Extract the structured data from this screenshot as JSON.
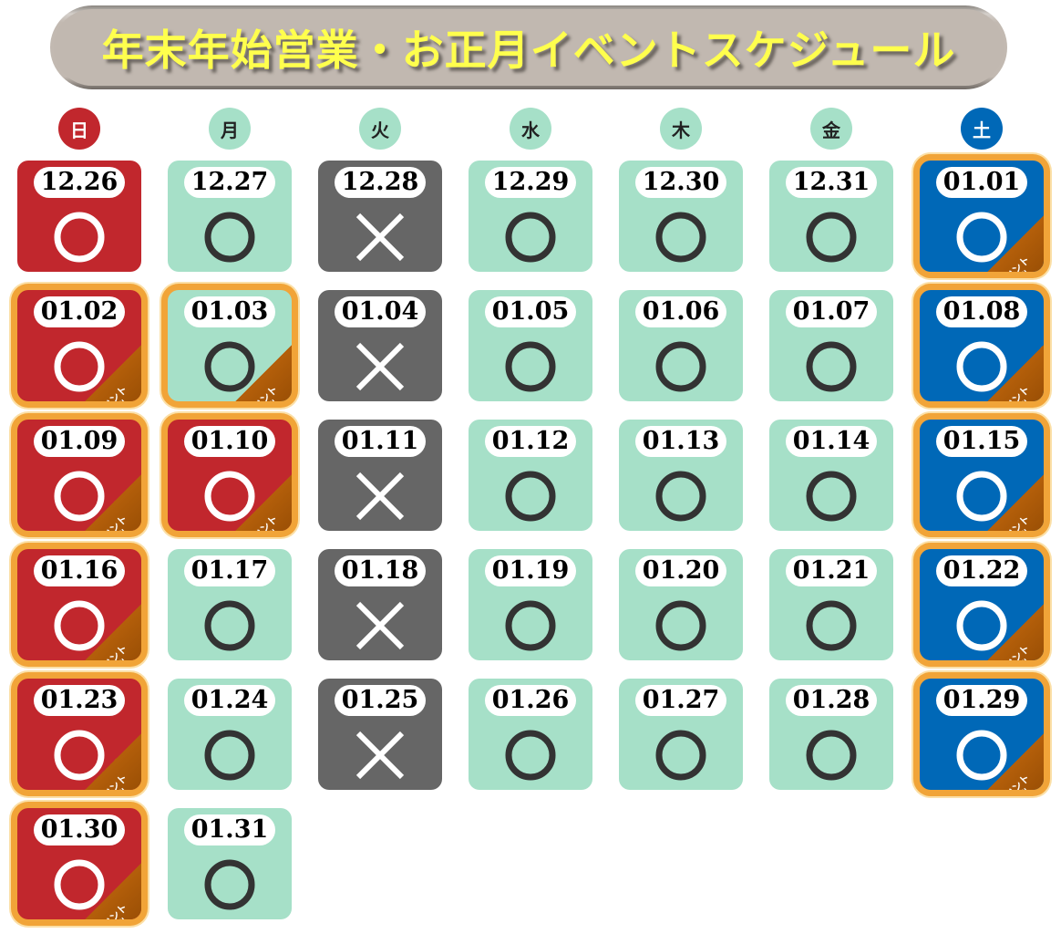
{
  "title": "年末年始営業・お正月イベントスケジュール",
  "weekdays": [
    {
      "label": "日",
      "type": "sun"
    },
    {
      "label": "月",
      "type": "normal"
    },
    {
      "label": "火",
      "type": "normal"
    },
    {
      "label": "水",
      "type": "normal"
    },
    {
      "label": "木",
      "type": "normal"
    },
    {
      "label": "金",
      "type": "normal"
    },
    {
      "label": "土",
      "type": "sat"
    }
  ],
  "event_label": "イベント開催",
  "legend": {
    "open_mark": "circle-icon",
    "closed_mark": "cross-icon"
  },
  "colors": {
    "sunday_holiday": "#c1272d",
    "weekday": "#a6e0c8",
    "closed": "#666666",
    "saturday": "#0068b7",
    "event_border": "#f1a438",
    "title_text": "#ffff4d"
  },
  "weeks": [
    [
      {
        "date": "12.26",
        "type": "sun",
        "open": true,
        "event": false
      },
      {
        "date": "12.27",
        "type": "normal",
        "open": true,
        "event": false
      },
      {
        "date": "12.28",
        "type": "closed",
        "open": false,
        "event": false
      },
      {
        "date": "12.29",
        "type": "normal",
        "open": true,
        "event": false
      },
      {
        "date": "12.30",
        "type": "normal",
        "open": true,
        "event": false
      },
      {
        "date": "12.31",
        "type": "normal",
        "open": true,
        "event": false
      },
      {
        "date": "01.01",
        "type": "sat",
        "open": true,
        "event": true
      }
    ],
    [
      {
        "date": "01.02",
        "type": "sun",
        "open": true,
        "event": true
      },
      {
        "date": "01.03",
        "type": "normal",
        "open": true,
        "event": true
      },
      {
        "date": "01.04",
        "type": "closed",
        "open": false,
        "event": false
      },
      {
        "date": "01.05",
        "type": "normal",
        "open": true,
        "event": false
      },
      {
        "date": "01.06",
        "type": "normal",
        "open": true,
        "event": false
      },
      {
        "date": "01.07",
        "type": "normal",
        "open": true,
        "event": false
      },
      {
        "date": "01.08",
        "type": "sat",
        "open": true,
        "event": true
      }
    ],
    [
      {
        "date": "01.09",
        "type": "sun",
        "open": true,
        "event": true
      },
      {
        "date": "01.10",
        "type": "sun",
        "open": true,
        "event": true
      },
      {
        "date": "01.11",
        "type": "closed",
        "open": false,
        "event": false
      },
      {
        "date": "01.12",
        "type": "normal",
        "open": true,
        "event": false
      },
      {
        "date": "01.13",
        "type": "normal",
        "open": true,
        "event": false
      },
      {
        "date": "01.14",
        "type": "normal",
        "open": true,
        "event": false
      },
      {
        "date": "01.15",
        "type": "sat",
        "open": true,
        "event": true
      }
    ],
    [
      {
        "date": "01.16",
        "type": "sun",
        "open": true,
        "event": true
      },
      {
        "date": "01.17",
        "type": "normal",
        "open": true,
        "event": false
      },
      {
        "date": "01.18",
        "type": "closed",
        "open": false,
        "event": false
      },
      {
        "date": "01.19",
        "type": "normal",
        "open": true,
        "event": false
      },
      {
        "date": "01.20",
        "type": "normal",
        "open": true,
        "event": false
      },
      {
        "date": "01.21",
        "type": "normal",
        "open": true,
        "event": false
      },
      {
        "date": "01.22",
        "type": "sat",
        "open": true,
        "event": true
      }
    ],
    [
      {
        "date": "01.23",
        "type": "sun",
        "open": true,
        "event": true
      },
      {
        "date": "01.24",
        "type": "normal",
        "open": true,
        "event": false
      },
      {
        "date": "01.25",
        "type": "closed",
        "open": false,
        "event": false
      },
      {
        "date": "01.26",
        "type": "normal",
        "open": true,
        "event": false
      },
      {
        "date": "01.27",
        "type": "normal",
        "open": true,
        "event": false
      },
      {
        "date": "01.28",
        "type": "normal",
        "open": true,
        "event": false
      },
      {
        "date": "01.29",
        "type": "sat",
        "open": true,
        "event": true
      }
    ],
    [
      {
        "date": "01.30",
        "type": "sun",
        "open": true,
        "event": true
      },
      {
        "date": "01.31",
        "type": "normal",
        "open": true,
        "event": false
      }
    ]
  ]
}
